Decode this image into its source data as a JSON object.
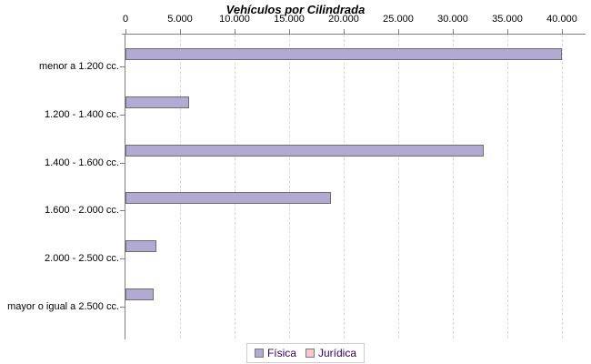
{
  "chart_data": {
    "type": "bar",
    "orientation": "horizontal",
    "title": "Vehículos por Cilindrada",
    "categories": [
      "menor a 1.200 cc.",
      "1.200 - 1.400 cc.",
      "1.400 - 1.600 cc.",
      "1.600 - 2.000 cc.",
      "2.000 - 2.500 cc.",
      "mayor o igual a 2.500 cc."
    ],
    "series": [
      {
        "name": "Física",
        "color": "#b3aad4",
        "outline": "#6e6e6e",
        "values": [
          40000,
          5800,
          32800,
          18800,
          2800,
          2600
        ]
      },
      {
        "name": "Jurídica",
        "color": "#f8c8c8",
        "outline": "#6e6e6e",
        "values": [
          0,
          0,
          0,
          0,
          0,
          0
        ]
      }
    ],
    "x_axis": {
      "min": 0,
      "max": 42000,
      "tick_interval": 5000,
      "tick_values": [
        0,
        5000,
        10000,
        15000,
        20000,
        25000,
        30000,
        35000,
        40000
      ],
      "tick_labels": [
        "0",
        "5.000",
        "10.000",
        "15.000",
        "20.000",
        "25.000",
        "30.000",
        "35.000",
        "40.000"
      ]
    },
    "grid": "vertical-dashed",
    "legend_position": "bottom"
  },
  "colors": {
    "axis": "#808080",
    "gridline": "#d9d9d9",
    "legend_text": "#330066",
    "legend_border": "#cccccc",
    "background": "#ffffff"
  }
}
